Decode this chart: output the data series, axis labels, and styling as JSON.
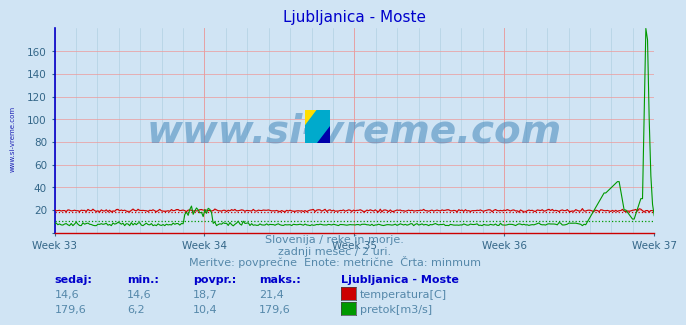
{
  "title": "Ljubljanica - Moste",
  "title_color": "#0000cc",
  "bg_color": "#d0e4f4",
  "plot_bg_color": "#d0e4f4",
  "grid_color_red": "#ee9999",
  "grid_color_blue": "#aaccdd",
  "x_tick_labels": [
    "Week 33",
    "Week 34",
    "Week 35",
    "Week 36",
    "Week 37"
  ],
  "x_tick_positions": [
    0,
    84,
    168,
    252,
    336
  ],
  "n_points": 360,
  "ylim": [
    0,
    180
  ],
  "yticks": [
    0,
    20,
    40,
    60,
    80,
    100,
    120,
    140,
    160
  ],
  "ytick_labels": [
    "",
    "20",
    "40",
    "60",
    "80",
    "100",
    "120",
    "140",
    "160"
  ],
  "temp_color": "#cc0000",
  "flow_color": "#009900",
  "temp_min_value": 18.2,
  "flow_min_value": 10.4,
  "watermark_text": "www.si-vreme.com",
  "watermark_color": "#4488bb",
  "watermark_alpha": 0.55,
  "watermark_fontsize": 28,
  "subtitle_lines": [
    "Slovenija / reke in morje.",
    "zadnji mesec / 2 uri.",
    "Meritve: povprečne  Enote: metrične  Črta: minmum"
  ],
  "subtitle_color": "#5588aa",
  "subtitle_fontsize": 8,
  "table_headers": [
    "sedaj:",
    "min.:",
    "povpr.:",
    "maks.:"
  ],
  "table_header_color": "#0000cc",
  "table_value_color": "#5588aa",
  "table_label_color": "#5588aa",
  "table_station_color": "#0000cc",
  "table_station": "Ljubljanica - Moste",
  "table_rows": [
    {
      "values": [
        "14,6",
        "14,6",
        "18,7",
        "21,4"
      ],
      "label": "temperatura[C]",
      "swatch_color": "#cc0000"
    },
    {
      "values": [
        "179,6",
        "6,2",
        "10,4",
        "179,6"
      ],
      "label": "pretok[m3/s]",
      "swatch_color": "#009900"
    }
  ],
  "left_label_text": "www.si-vreme.com",
  "left_label_color": "#0000aa",
  "spine_left_color": "#0000cc",
  "spine_bottom_color": "#cc0000",
  "tick_color": "#336688"
}
